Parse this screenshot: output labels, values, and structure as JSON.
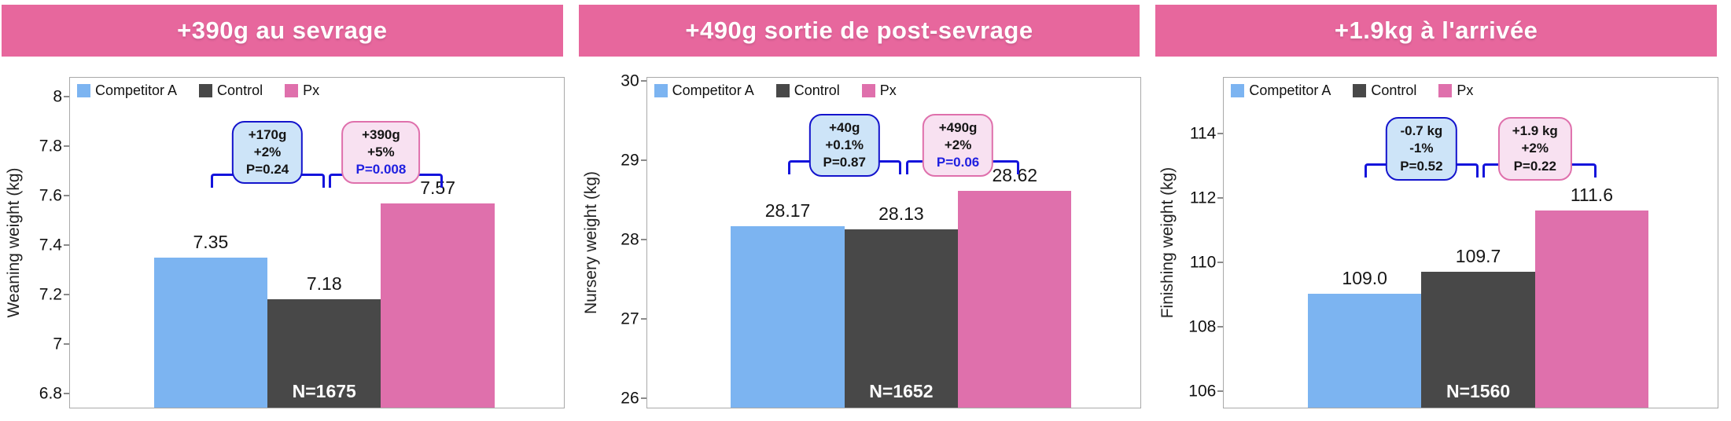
{
  "colors": {
    "banner": "#e7679d",
    "bars": [
      "#7cb4f1",
      "#484848",
      "#df70ac"
    ],
    "bracket": "#1414dc",
    "p_value_highlight": "#2020e0",
    "box_blue_fill": "#cde4f8",
    "box_blue_border": "#1414cc",
    "box_pink_fill": "#f8e1f1",
    "box_pink_border": "#df70ac",
    "frame_border": "#a9a9a9"
  },
  "legend_labels": [
    "Competitor A",
    "Control",
    "Px"
  ],
  "chart_data": [
    {
      "type": "bar",
      "title": "+390g au sevrage",
      "ylabel": "Weaning weight (kg)",
      "categories": [
        "Competitor A",
        "Control",
        "Px"
      ],
      "values": [
        7.35,
        7.18,
        7.57
      ],
      "value_labels": [
        "7.35",
        "7.18",
        "7.57"
      ],
      "sample_size": "N=1675",
      "ylim": [
        6.74,
        8.08
      ],
      "yticks": [
        8,
        7.8,
        7.6,
        7.4,
        7.2,
        7,
        6.8
      ],
      "ytick_labels": [
        "8",
        "7.8",
        "7.6",
        "7.4",
        "7.2",
        "7",
        "6.8"
      ],
      "grid": false,
      "legend_position": "top-left",
      "annotations": {
        "left": {
          "span": [
            0,
            1
          ],
          "lines": [
            "+170g",
            "+2%",
            "P=0.24"
          ],
          "style": "blue",
          "p_highlight": false
        },
        "right": {
          "span": [
            1,
            2
          ],
          "lines": [
            "+390g",
            "+5%",
            "P=0.008"
          ],
          "style": "pink",
          "p_highlight": true
        }
      },
      "layout": {
        "bracket_top_pct": 29,
        "anno_top_pct": 13
      }
    },
    {
      "type": "bar",
      "title": "+490g sortie de post-sevrage",
      "ylabel": "Nursery weight (kg)",
      "categories": [
        "Competitor A",
        "Control",
        "Px"
      ],
      "values": [
        28.17,
        28.13,
        28.62
      ],
      "value_labels": [
        "28.17",
        "28.13",
        "28.62"
      ],
      "sample_size": "N=1652",
      "ylim": [
        25.87,
        30.05
      ],
      "yticks": [
        30,
        29,
        28,
        27,
        26
      ],
      "ytick_labels": [
        "30",
        "29",
        "28",
        "27",
        "26"
      ],
      "grid": false,
      "legend_position": "top-left",
      "annotations": {
        "left": {
          "span": [
            0,
            1
          ],
          "lines": [
            "+40g",
            "+0.1%",
            "P=0.87"
          ],
          "style": "blue",
          "p_highlight": false
        },
        "right": {
          "span": [
            1,
            2
          ],
          "lines": [
            "+490g",
            "+2%",
            "P=0.06"
          ],
          "style": "pink",
          "p_highlight": true
        }
      },
      "layout": {
        "bracket_top_pct": 25,
        "anno_top_pct": 11
      }
    },
    {
      "type": "bar",
      "title": "+1.9kg à l'arrivée",
      "ylabel": "Finishing weight (kg)",
      "categories": [
        "Competitor A",
        "Control",
        "Px"
      ],
      "values": [
        109.0,
        109.7,
        111.6
      ],
      "value_labels": [
        "109.0",
        "109.7",
        "111.6"
      ],
      "sample_size": "N=1560",
      "ylim": [
        105.45,
        115.76
      ],
      "yticks": [
        114,
        112,
        110,
        108,
        106
      ],
      "ytick_labels": [
        "114",
        "112",
        "110",
        "108",
        "106"
      ],
      "grid": false,
      "legend_position": "top-left",
      "annotations": {
        "left": {
          "span": [
            0,
            1
          ],
          "lines": [
            "-0.7 kg",
            "-1%",
            "P=0.52"
          ],
          "style": "blue",
          "p_highlight": false
        },
        "right": {
          "span": [
            1,
            2
          ],
          "lines": [
            "+1.9 kg",
            "+2%",
            "P=0.22"
          ],
          "style": "pink",
          "p_highlight": false
        }
      },
      "layout": {
        "bracket_top_pct": 26,
        "anno_top_pct": 12
      }
    }
  ]
}
